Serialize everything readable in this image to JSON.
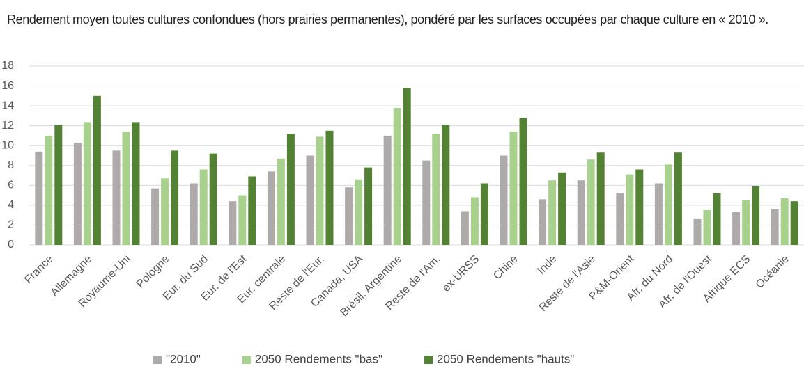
{
  "chart_data": {
    "type": "bar",
    "title": "Rendement moyen toutes cultures confondues (hors prairies permanentes), pondéré par les surfaces occupées par chaque culture en « 2010 ».",
    "categories": [
      "France",
      "Allemagne",
      "Royaume-Uni",
      "Pologne",
      "Eur. du Sud",
      "Eur. de l'Est",
      "Eur. centrale",
      "Reste de l'Eur.",
      "Canada, USA",
      "Brésil, Argentine",
      "Reste de l'Am.",
      "ex-URSS",
      "Chine",
      "Inde",
      "Reste de l'Asie",
      "P&M-Orient",
      "Afr. du Nord",
      "Afr. de l'Ouest",
      "Afrique ECS",
      "Océanie"
    ],
    "series": [
      {
        "name": "\"2010\"",
        "color": "#aeaaaa",
        "values": [
          9.4,
          10.3,
          9.5,
          5.7,
          6.2,
          4.4,
          7.4,
          9.0,
          5.8,
          11.0,
          8.5,
          3.4,
          9.0,
          4.6,
          6.5,
          5.2,
          6.2,
          2.6,
          3.3,
          3.6
        ]
      },
      {
        "name": "2050 Rendements \"bas\"",
        "color": "#a9d18e",
        "values": [
          11.0,
          12.3,
          11.4,
          6.7,
          7.6,
          5.0,
          8.7,
          10.9,
          6.6,
          13.8,
          11.2,
          4.8,
          11.4,
          6.5,
          8.6,
          7.1,
          8.1,
          3.5,
          4.5,
          4.7
        ]
      },
      {
        "name": "2050 Rendements \"hauts\"",
        "color": "#548235",
        "values": [
          12.1,
          15.0,
          12.3,
          9.5,
          9.2,
          6.9,
          11.2,
          11.5,
          7.8,
          15.8,
          12.1,
          6.2,
          12.8,
          7.3,
          9.3,
          7.6,
          9.3,
          5.2,
          5.9,
          4.4
        ]
      }
    ],
    "ylim": [
      0,
      18
    ],
    "yticks": [
      0,
      2,
      4,
      6,
      8,
      10,
      12,
      14,
      16,
      18
    ],
    "grid": true,
    "legend": "bottom"
  }
}
